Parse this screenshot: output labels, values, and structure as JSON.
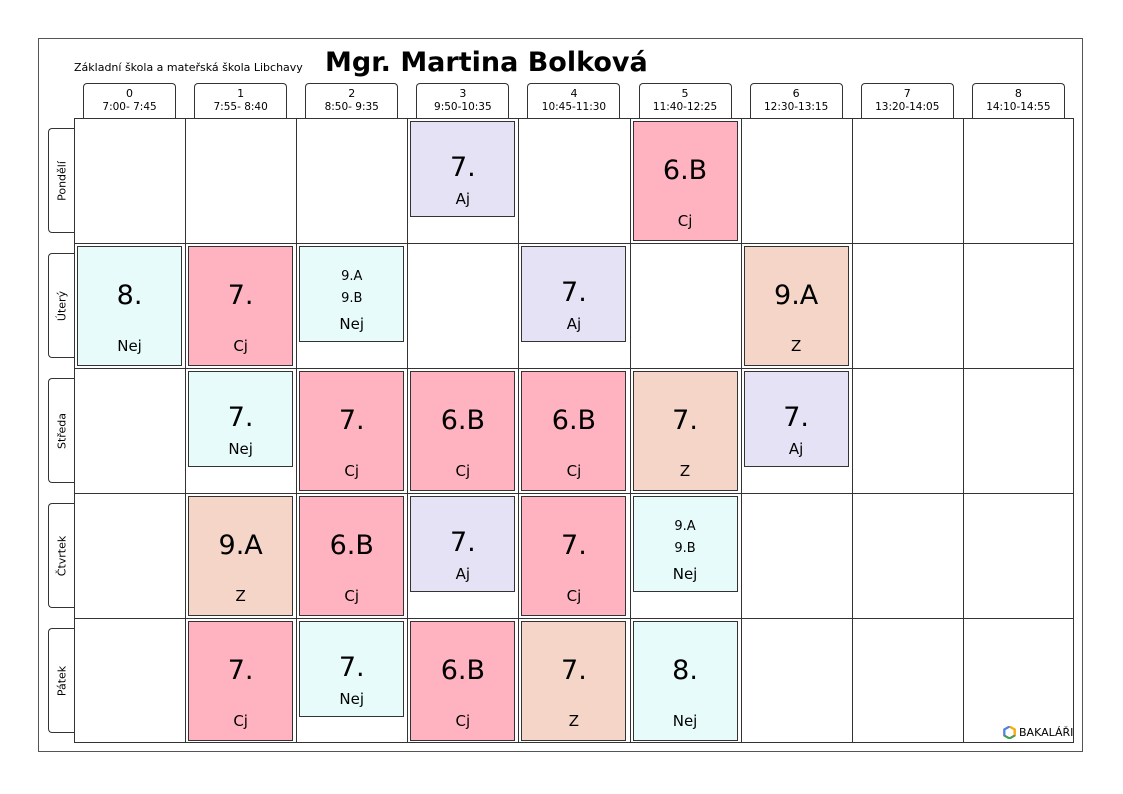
{
  "header": {
    "school": "Základní škola a mateřská škola Libchavy",
    "teacher": "Mgr. Martina Bolková"
  },
  "periods": [
    {
      "num": "0",
      "time": "7:00- 7:45"
    },
    {
      "num": "1",
      "time": "7:55- 8:40"
    },
    {
      "num": "2",
      "time": "8:50- 9:35"
    },
    {
      "num": "3",
      "time": "9:50-10:35"
    },
    {
      "num": "4",
      "time": "10:45-11:30"
    },
    {
      "num": "5",
      "time": "11:40-12:25"
    },
    {
      "num": "6",
      "time": "12:30-13:15"
    },
    {
      "num": "7",
      "time": "13:20-14:05"
    },
    {
      "num": "8",
      "time": "14:10-14:55"
    }
  ],
  "days": [
    "Pondělí",
    "Úterý",
    "Středa",
    "Čtvrtek",
    "Pátek"
  ],
  "colors": {
    "cj": "#ffb3c1",
    "aj": "#e6e2f6",
    "nej": "#e8fbfb",
    "z": "#f4d5c8"
  },
  "lessons": [
    {
      "day": 0,
      "period": 3,
      "cls": "7.",
      "subj": "Aj",
      "type": "aj",
      "size": "short"
    },
    {
      "day": 0,
      "period": 5,
      "cls": "6.B",
      "subj": "Cj",
      "type": "cj",
      "size": "full"
    },
    {
      "day": 1,
      "period": 0,
      "cls": "8.",
      "subj": "Nej",
      "type": "nej",
      "size": "full"
    },
    {
      "day": 1,
      "period": 1,
      "cls": "7.",
      "subj": "Cj",
      "type": "cj",
      "size": "full"
    },
    {
      "day": 1,
      "period": 2,
      "groups": [
        "9.A",
        "9.B"
      ],
      "subj": "Nej",
      "type": "nej",
      "size": "short"
    },
    {
      "day": 1,
      "period": 4,
      "cls": "7.",
      "subj": "Aj",
      "type": "aj",
      "size": "short"
    },
    {
      "day": 1,
      "period": 6,
      "cls": "9.A",
      "subj": "Z",
      "type": "z",
      "size": "full"
    },
    {
      "day": 2,
      "period": 1,
      "cls": "7.",
      "subj": "Nej",
      "type": "nej",
      "size": "short"
    },
    {
      "day": 2,
      "period": 2,
      "cls": "7.",
      "subj": "Cj",
      "type": "cj",
      "size": "full"
    },
    {
      "day": 2,
      "period": 3,
      "cls": "6.B",
      "subj": "Cj",
      "type": "cj",
      "size": "full"
    },
    {
      "day": 2,
      "period": 4,
      "cls": "6.B",
      "subj": "Cj",
      "type": "cj",
      "size": "full"
    },
    {
      "day": 2,
      "period": 5,
      "cls": "7.",
      "subj": "Z",
      "type": "z",
      "size": "full"
    },
    {
      "day": 2,
      "period": 6,
      "cls": "7.",
      "subj": "Aj",
      "type": "aj",
      "size": "short"
    },
    {
      "day": 3,
      "period": 1,
      "cls": "9.A",
      "subj": "Z",
      "type": "z",
      "size": "full"
    },
    {
      "day": 3,
      "period": 2,
      "cls": "6.B",
      "subj": "Cj",
      "type": "cj",
      "size": "full"
    },
    {
      "day": 3,
      "period": 3,
      "cls": "7.",
      "subj": "Aj",
      "type": "aj",
      "size": "short"
    },
    {
      "day": 3,
      "period": 4,
      "cls": "7.",
      "subj": "Cj",
      "type": "cj",
      "size": "full"
    },
    {
      "day": 3,
      "period": 5,
      "groups": [
        "9.A",
        "9.B"
      ],
      "subj": "Nej",
      "type": "nej",
      "size": "short"
    },
    {
      "day": 4,
      "period": 1,
      "cls": "7.",
      "subj": "Cj",
      "type": "cj",
      "size": "full"
    },
    {
      "day": 4,
      "period": 2,
      "cls": "7.",
      "subj": "Nej",
      "type": "nej",
      "size": "short"
    },
    {
      "day": 4,
      "period": 3,
      "cls": "6.B",
      "subj": "Cj",
      "type": "cj",
      "size": "full"
    },
    {
      "day": 4,
      "period": 4,
      "cls": "7.",
      "subj": "Z",
      "type": "z",
      "size": "full"
    },
    {
      "day": 4,
      "period": 5,
      "cls": "8.",
      "subj": "Nej",
      "type": "nej",
      "size": "full"
    }
  ],
  "logo": {
    "text": "BAKALÁŘI",
    "icon": "bakalari-logo-icon"
  }
}
